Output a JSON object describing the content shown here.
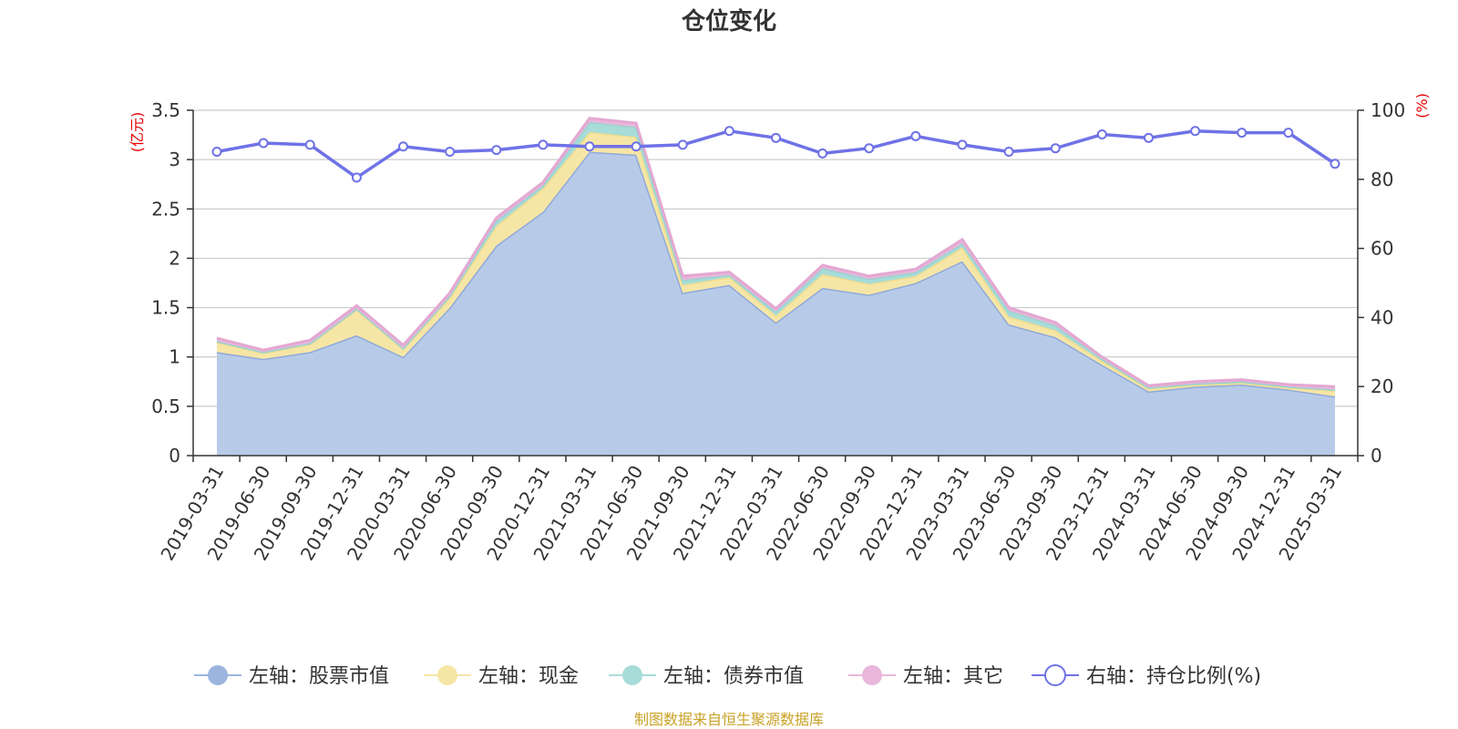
{
  "chart_data": {
    "type": "area",
    "title": "仓位变化",
    "left_axis_unit": "(亿元)",
    "right_axis_unit": "(%)",
    "ylim_left": [
      0,
      3.5
    ],
    "ylim_right": [
      0,
      100
    ],
    "left_ticks": [
      "0",
      "0.5",
      "1",
      "1.5",
      "2",
      "2.5",
      "3",
      "3.5"
    ],
    "right_ticks": [
      "0",
      "20",
      "40",
      "60",
      "80",
      "100"
    ],
    "grid": true,
    "legend_position": "bottom",
    "categories": [
      "2019-03-31",
      "2019-06-30",
      "2019-09-30",
      "2019-12-31",
      "2020-03-31",
      "2020-06-30",
      "2020-09-30",
      "2020-12-31",
      "2021-03-31",
      "2021-06-30",
      "2021-09-30",
      "2021-12-31",
      "2022-03-31",
      "2022-06-30",
      "2022-09-30",
      "2022-12-31",
      "2023-03-31",
      "2023-06-30",
      "2023-09-30",
      "2023-12-31",
      "2024-03-31",
      "2024-06-30",
      "2024-09-30",
      "2024-12-31",
      "2025-03-31"
    ],
    "series": [
      {
        "name": "左轴：股票市值",
        "axis": "left",
        "stacked": true,
        "color": "#9bb5de",
        "values": [
          1.05,
          0.98,
          1.05,
          1.22,
          1.0,
          1.5,
          2.13,
          2.47,
          3.08,
          3.05,
          1.65,
          1.73,
          1.35,
          1.7,
          1.63,
          1.75,
          1.97,
          1.33,
          1.2,
          0.92,
          0.65,
          0.7,
          0.72,
          0.67,
          0.6
        ]
      },
      {
        "name": "左轴：现金",
        "axis": "left",
        "stacked": true,
        "color": "#f6e6a6",
        "values": [
          0.1,
          0.06,
          0.08,
          0.26,
          0.08,
          0.1,
          0.2,
          0.24,
          0.2,
          0.18,
          0.08,
          0.08,
          0.07,
          0.14,
          0.11,
          0.07,
          0.14,
          0.08,
          0.07,
          0.04,
          0.03,
          0.02,
          0.02,
          0.02,
          0.06
        ]
      },
      {
        "name": "左轴：债券市值",
        "axis": "left",
        "stacked": true,
        "color": "#a7dcd8",
        "values": [
          0.01,
          0.01,
          0.01,
          0.01,
          0.01,
          0.02,
          0.05,
          0.03,
          0.1,
          0.1,
          0.05,
          0.02,
          0.04,
          0.06,
          0.05,
          0.04,
          0.04,
          0.06,
          0.05,
          0.02,
          0.01,
          0.01,
          0.01,
          0.01,
          0.01
        ]
      },
      {
        "name": "左轴：其它",
        "axis": "left",
        "stacked": true,
        "color": "#e8b7da",
        "values": [
          0.03,
          0.02,
          0.03,
          0.03,
          0.03,
          0.03,
          0.03,
          0.03,
          0.04,
          0.04,
          0.04,
          0.03,
          0.03,
          0.03,
          0.03,
          0.03,
          0.04,
          0.03,
          0.03,
          0.02,
          0.02,
          0.02,
          0.02,
          0.02,
          0.03
        ]
      },
      {
        "name": "右轴：持仓比例(%)",
        "axis": "right",
        "stacked": false,
        "color": "#6f72e6",
        "values": [
          88,
          90.5,
          90,
          80.5,
          89.5,
          88,
          88.5,
          90,
          89.5,
          89.5,
          90,
          94,
          92,
          87.5,
          89,
          92.5,
          90,
          88,
          89,
          93,
          92,
          94,
          93.5,
          93.5,
          84.5
        ]
      }
    ]
  },
  "source_note": "制图数据来自恒生聚源数据库"
}
